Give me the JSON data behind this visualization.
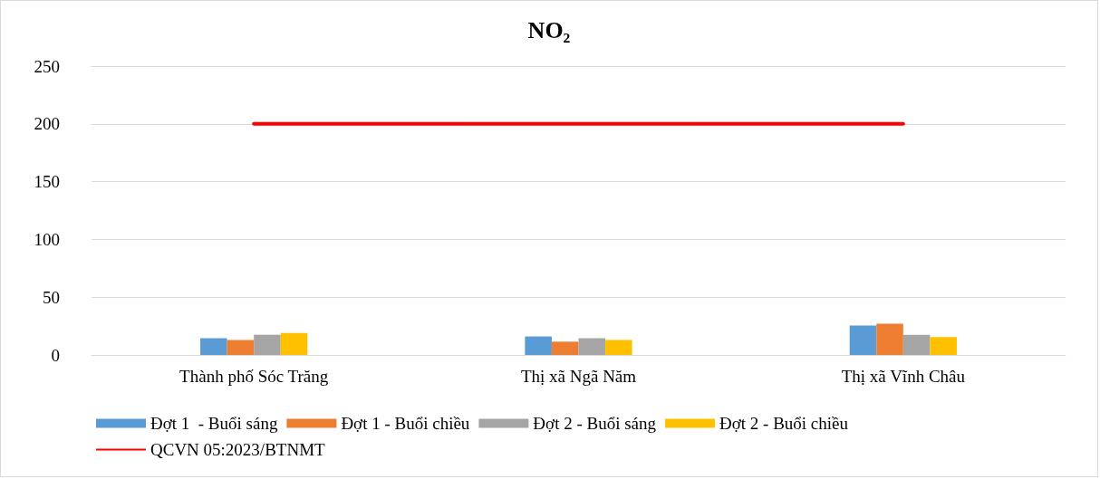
{
  "chart_data": {
    "type": "bar",
    "title": "NO₂",
    "categories": [
      "Thành phố Sóc Trăng",
      "Thị xã Ngã Năm",
      "Thị xã Vĩnh Châu"
    ],
    "series": [
      {
        "name": "Đợt 1  - Buổi sáng",
        "color": "#5b9bd5",
        "values": [
          14.5,
          16,
          25.5
        ]
      },
      {
        "name": "Đợt 1 - Buổi chiều",
        "color": "#ed7d31",
        "values": [
          13,
          11.5,
          27
        ]
      },
      {
        "name": "Đợt 2 - Buổi sáng",
        "color": "#a5a5a5",
        "values": [
          17.5,
          14.5,
          17.5
        ]
      },
      {
        "name": "Đợt 2 - Buổi chiều",
        "color": "#ffc000",
        "values": [
          19,
          13,
          15.5
        ]
      },
      {
        "name": "QCVN 05:2023/BTNMT",
        "type": "line",
        "color": "#ff0000",
        "values": [
          200,
          200,
          200
        ]
      }
    ],
    "ylim": [
      0,
      250
    ],
    "yticks": [
      0,
      50,
      100,
      150,
      200,
      250
    ],
    "grid": "y",
    "legend": "bottom",
    "marker": "none"
  }
}
